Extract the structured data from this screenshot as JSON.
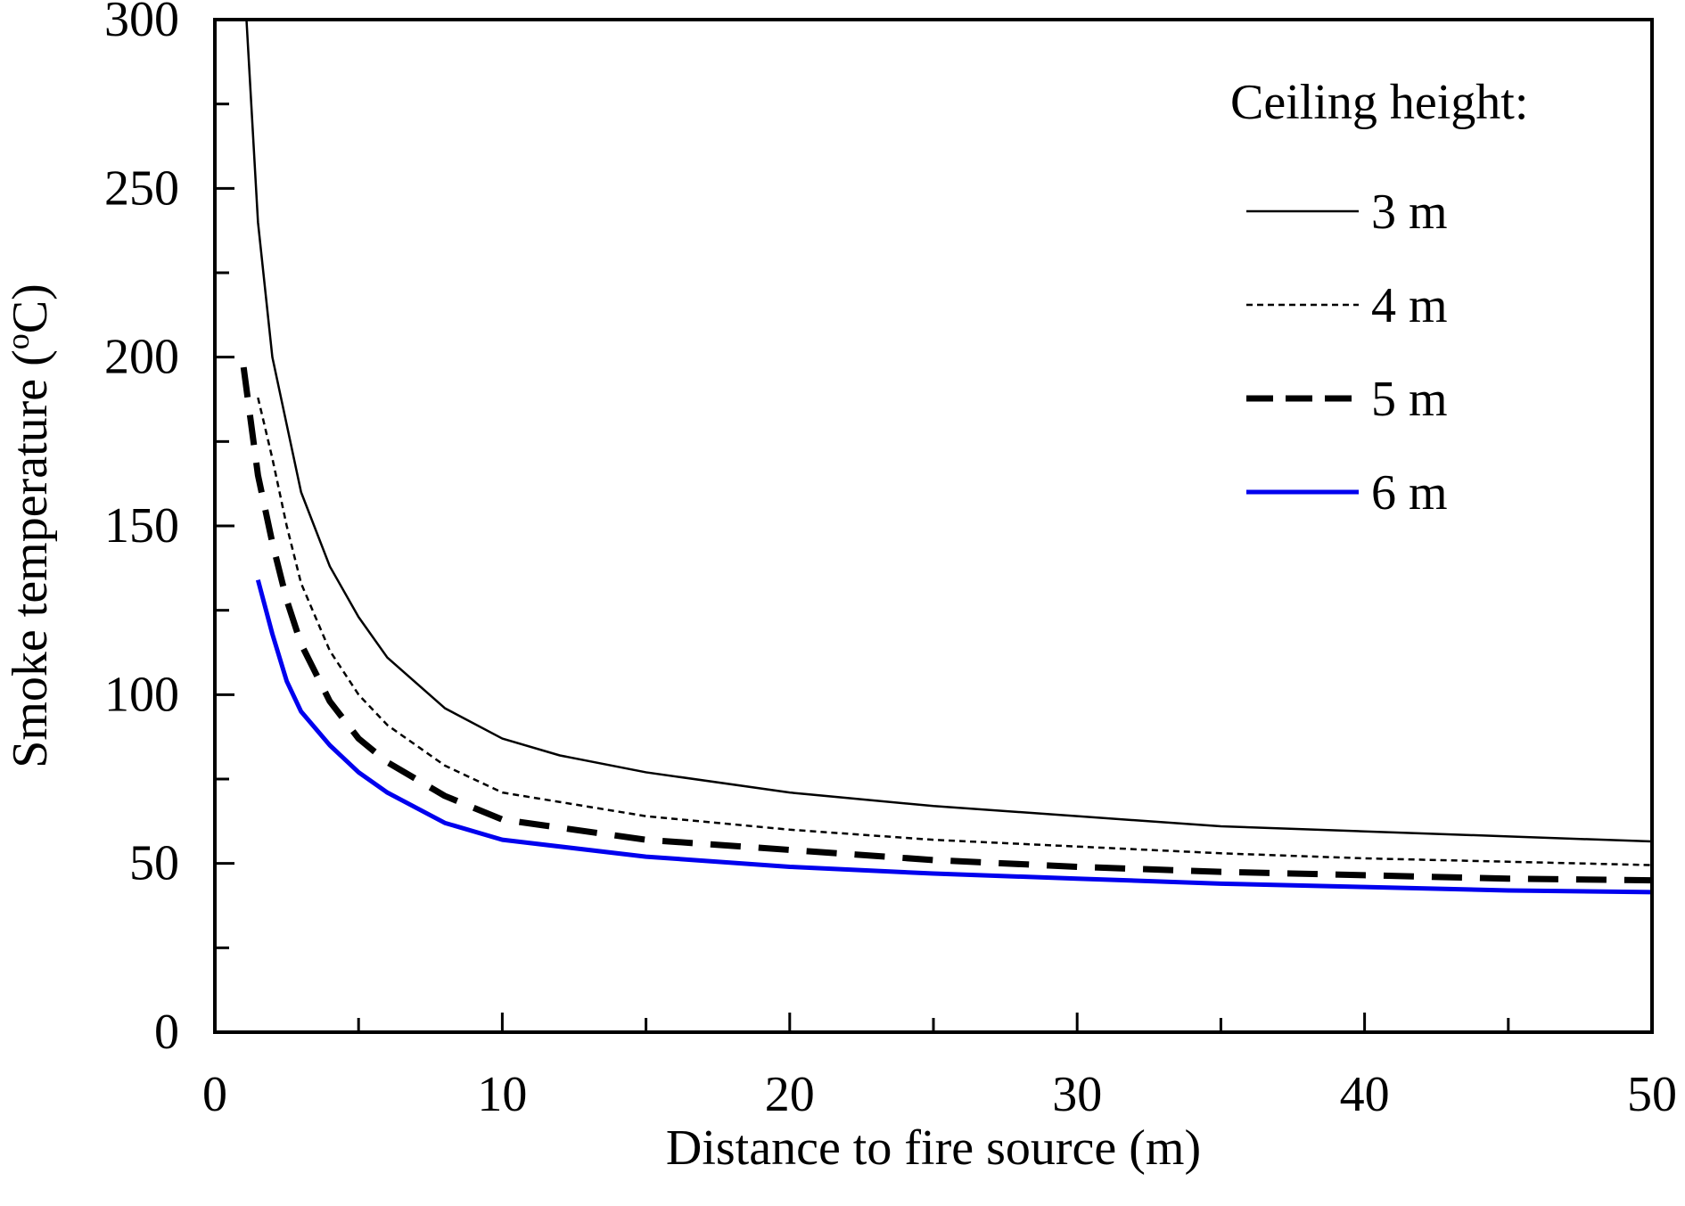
{
  "chart_data": {
    "type": "line",
    "xlabel": "Distance to fire source (m)",
    "ylabel": "Smoke temperature (°C)",
    "ylabel_parts": {
      "pre": "Smoke temperature (",
      "sup": "o",
      "post": "C)"
    },
    "xlim": [
      0,
      50
    ],
    "ylim": [
      0,
      300
    ],
    "xticks": [
      0,
      10,
      20,
      30,
      40,
      50
    ],
    "yticks": [
      0,
      50,
      100,
      150,
      200,
      250,
      300
    ],
    "grid": false,
    "legend": {
      "title": "Ceiling height:",
      "placement": "top-right"
    },
    "series": [
      {
        "name": "3 m",
        "color": "#000000",
        "style": "solid-thin",
        "x": [
          1.1,
          1.5,
          2,
          2.5,
          3,
          4,
          5,
          6,
          8,
          10,
          12,
          15,
          20,
          25,
          30,
          35,
          40,
          45,
          50
        ],
        "y": [
          300,
          240,
          200,
          180,
          160,
          138,
          123,
          111,
          96,
          87,
          82,
          77,
          71,
          67,
          64,
          61,
          59.5,
          58,
          56.5
        ]
      },
      {
        "name": "4 m",
        "color": "#000000",
        "style": "dotted",
        "x": [
          1.5,
          2,
          2.5,
          3,
          4,
          5,
          6,
          8,
          10,
          15,
          20,
          25,
          30,
          35,
          40,
          45,
          50
        ],
        "y": [
          188,
          170,
          150,
          133,
          113,
          100,
          91,
          79,
          71,
          64,
          60,
          57,
          55,
          53,
          51.5,
          50.5,
          49.5
        ]
      },
      {
        "name": "5 m",
        "color": "#000000",
        "style": "long-dash",
        "x": [
          1,
          1.5,
          2,
          2.5,
          3,
          4,
          5,
          6,
          8,
          10,
          15,
          20,
          25,
          30,
          35,
          40,
          45,
          50
        ],
        "y": [
          197,
          165,
          145,
          128,
          115,
          98,
          87,
          80,
          70,
          63,
          57,
          54,
          51,
          49,
          47.5,
          46.5,
          45.5,
          45
        ]
      },
      {
        "name": "6 m",
        "color": "#0000ee",
        "style": "solid-thick",
        "x": [
          1.5,
          2,
          2.5,
          3,
          4,
          5,
          6,
          8,
          10,
          15,
          20,
          25,
          30,
          35,
          40,
          45,
          50
        ],
        "y": [
          134,
          118,
          104,
          95,
          85,
          77,
          71,
          62,
          57,
          52,
          49,
          47,
          45.5,
          44,
          43,
          42,
          41.5
        ]
      }
    ]
  }
}
